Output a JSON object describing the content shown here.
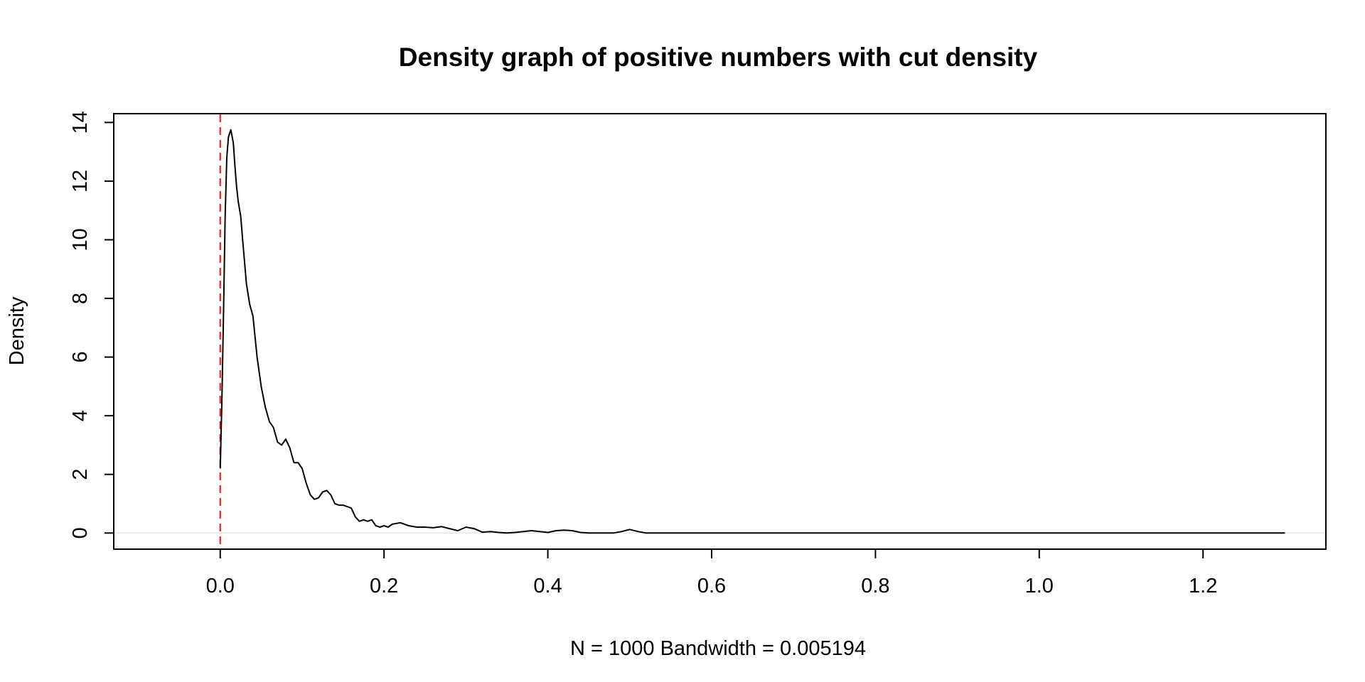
{
  "chart_data": {
    "type": "line",
    "title": "Density graph of positive numbers with cut density",
    "xlabel": "N = 1000   Bandwidth = 0.005194",
    "ylabel": "Density",
    "xlim": [
      -0.13,
      1.35
    ],
    "ylim": [
      -0.55,
      14.3
    ],
    "x_ticks": [
      0,
      0.2,
      0.4,
      0.6,
      0.8,
      1.0,
      1.2
    ],
    "x_tick_labels": [
      "0.0",
      "0.2",
      "0.4",
      "0.6",
      "0.8",
      "1.0",
      "1.2"
    ],
    "y_ticks": [
      0,
      2,
      4,
      6,
      8,
      10,
      12,
      14
    ],
    "y_tick_labels": [
      "0",
      "2",
      "4",
      "6",
      "8",
      "10",
      "12",
      "14"
    ],
    "grid": false,
    "zero_baseline": {
      "y": 0,
      "color": "#e6e6e6"
    },
    "cut_line": {
      "x": 0,
      "color": "#e8262b",
      "style": "dashed"
    },
    "series": [
      {
        "color": "#000000",
        "x": [
          0.0,
          0.002,
          0.004,
          0.006,
          0.008,
          0.01,
          0.013,
          0.016,
          0.018,
          0.02,
          0.022,
          0.025,
          0.028,
          0.032,
          0.036,
          0.04,
          0.045,
          0.05,
          0.055,
          0.06,
          0.065,
          0.07,
          0.075,
          0.08,
          0.085,
          0.09,
          0.095,
          0.1,
          0.105,
          0.11,
          0.115,
          0.12,
          0.125,
          0.13,
          0.135,
          0.14,
          0.145,
          0.15,
          0.155,
          0.16,
          0.165,
          0.17,
          0.175,
          0.18,
          0.185,
          0.19,
          0.195,
          0.2,
          0.205,
          0.21,
          0.22,
          0.23,
          0.24,
          0.25,
          0.26,
          0.27,
          0.28,
          0.29,
          0.3,
          0.31,
          0.32,
          0.33,
          0.34,
          0.35,
          0.36,
          0.37,
          0.38,
          0.39,
          0.4,
          0.41,
          0.42,
          0.43,
          0.44,
          0.45,
          0.46,
          0.47,
          0.48,
          0.49,
          0.5,
          0.51,
          0.52,
          0.53,
          0.54,
          0.55,
          0.56,
          0.57,
          0.58,
          0.6,
          0.65,
          0.7,
          0.75,
          0.8,
          0.84,
          0.85,
          0.86,
          0.87,
          0.88,
          0.9,
          0.95,
          1.0,
          1.02,
          1.03,
          1.042,
          1.055,
          1.07,
          1.1,
          1.15,
          1.2,
          1.25,
          1.27,
          1.285,
          1.295,
          1.3
        ],
        "y": [
          2.2,
          4.5,
          7.5,
          10.8,
          12.8,
          13.5,
          13.75,
          13.3,
          12.5,
          11.8,
          11.3,
          10.8,
          9.8,
          8.5,
          7.8,
          7.4,
          6.0,
          5.0,
          4.3,
          3.8,
          3.6,
          3.1,
          3.0,
          3.2,
          2.9,
          2.4,
          2.4,
          2.2,
          1.7,
          1.3,
          1.15,
          1.2,
          1.4,
          1.45,
          1.3,
          1.0,
          0.95,
          0.95,
          0.9,
          0.85,
          0.55,
          0.4,
          0.45,
          0.4,
          0.45,
          0.25,
          0.2,
          0.25,
          0.2,
          0.3,
          0.35,
          0.25,
          0.2,
          0.2,
          0.18,
          0.22,
          0.15,
          0.08,
          0.2,
          0.15,
          0.03,
          0.05,
          0.02,
          0.0,
          0.02,
          0.05,
          0.08,
          0.05,
          0.02,
          0.08,
          0.1,
          0.08,
          0.02,
          0.0,
          0.0,
          0.0,
          0.0,
          0.05,
          0.12,
          0.05,
          0.0,
          0.0,
          0.0,
          0.0,
          0.0,
          0.0,
          0.0,
          0.0,
          0.0,
          0.0,
          0.0,
          0.0,
          0.0,
          0.0,
          0.0,
          0.0,
          0.0,
          0.0,
          0.0,
          0.0,
          0.0,
          0.0,
          0.0,
          0.0,
          0.0,
          0.0,
          0.0,
          0.0,
          0.0,
          0.0,
          0.0,
          0.0,
          0.0
        ]
      }
    ]
  }
}
